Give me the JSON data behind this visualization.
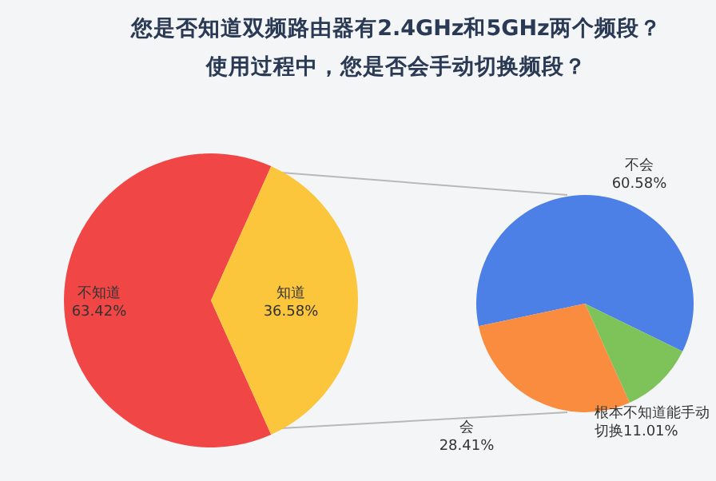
{
  "chart_data": [
    {
      "type": "pie",
      "title": "您是否知道双频路由器有2.4GHz和5GHz两个频段？",
      "subtitle": "使用过程中，您是否会手动切换频段？",
      "categories": [
        "不知道",
        "知道"
      ],
      "values": [
        63.42,
        36.58
      ],
      "colors": [
        "#f04646",
        "#fcc63c"
      ],
      "value_labels": [
        "63.42%",
        "36.58%"
      ]
    },
    {
      "type": "pie",
      "categories": [
        "不会",
        "根本不知道能手动切换",
        "会"
      ],
      "values": [
        60.58,
        11.01,
        28.41
      ],
      "colors": [
        "#4d80e6",
        "#7ec35a",
        "#f98c3e"
      ],
      "value_labels": [
        "60.58%",
        "11.01%",
        "28.41%"
      ]
    }
  ]
}
